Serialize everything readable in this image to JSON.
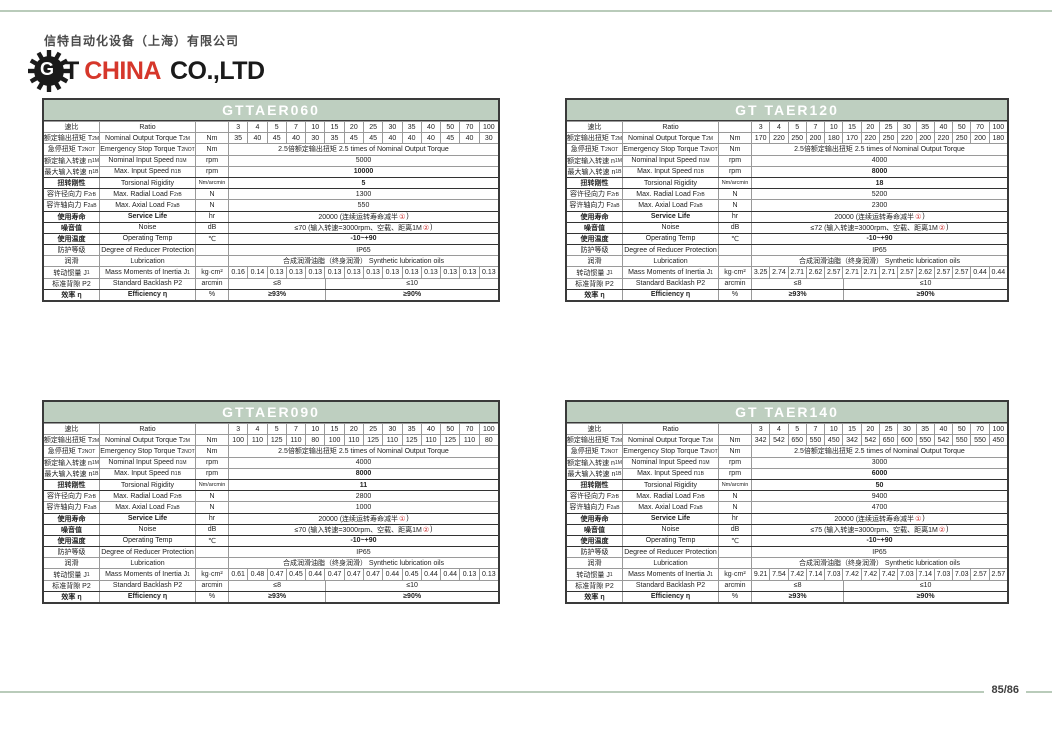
{
  "page": {
    "footer": {
      "page_number": "85/86"
    },
    "colors": {
      "band_green": "#becfc0",
      "line_green": "#b9cbba",
      "brand_red": "#d6372b",
      "mark_red": "#cc3333"
    }
  },
  "header": {
    "company_zh": "信特自动化设备（上海）有限公司",
    "brand_g": "G",
    "brand_t": "T",
    "brand_china": "CHINA",
    "brand_co": "CO.,LTD"
  },
  "tables": [
    {
      "title": "GTTAER060",
      "ratio": {
        "zh": "速比",
        "en": "Ratio",
        "unit": "",
        "values": [
          "3",
          "4",
          "5",
          "7",
          "10",
          "15",
          "20",
          "25",
          "30",
          "35",
          "40",
          "50",
          "70",
          "100"
        ]
      },
      "rows": [
        {
          "zh": "额定输出扭矩 T",
          "zh_sub": "2M",
          "en": "Nominal Output Torque T",
          "en_sub": "2M",
          "unit": "Nm",
          "type": "values",
          "values": [
            "35",
            "40",
            "45",
            "40",
            "30",
            "35",
            "45",
            "45",
            "40",
            "40",
            "40",
            "45",
            "40",
            "30"
          ]
        },
        {
          "zh": "急停扭矩 T",
          "zh_sub": "2NOT",
          "en": "Emergency Stop Torque T",
          "en_sub": "2NOT",
          "unit": "Nm",
          "type": "span",
          "value": "2.5倍额定输出扭矩  2.5 times of Nominal Output Torque"
        },
        {
          "zh": "额定输入转速 n",
          "zh_sub": "1M",
          "en": "Nominal Input Speed n",
          "en_sub": "1M",
          "unit": "rpm",
          "type": "span",
          "value": "5000"
        },
        {
          "zh": "最大输入转速 n",
          "zh_sub": "1B",
          "en": "Max. Input Speed n",
          "en_sub": "1B",
          "unit": "rpm",
          "type": "span",
          "value": "10000",
          "bold": true
        },
        {
          "zh": "扭转刚性",
          "en": "Torsional Rigidity",
          "unit": "Nm/arcmin",
          "type": "span",
          "value": "5",
          "bold": true,
          "zh_bold": true,
          "thick": true
        },
        {
          "zh": "容许径向力 F",
          "zh_sub": "2rB",
          "en": "Max. Radial Load F",
          "en_sub": "2rB",
          "unit": "N",
          "type": "span",
          "value": "1300",
          "thick": true
        },
        {
          "zh": "容许轴向力 F",
          "zh_sub": "2aB",
          "en": "Max. Axial Load F",
          "en_sub": "2aB",
          "unit": "N",
          "type": "span",
          "value": "550"
        },
        {
          "zh": "使用寿命",
          "en": "Service Life",
          "unit": "hr",
          "type": "span_red",
          "pre": "20000 (连续运转寿命减半",
          "red": "①",
          "post": ")",
          "zh_bold": true,
          "en_bold": true,
          "thick": true
        },
        {
          "zh": "噪音值",
          "en": "Noise",
          "unit": "dB",
          "type": "span_red",
          "pre": "≤70 (输入转速=3000rpm、空载、距离1M",
          "red": "②",
          "post": ")",
          "zh_bold": true,
          "thick": true
        },
        {
          "zh": "使用温度",
          "en": "Operating Temp",
          "unit": "℃",
          "type": "span",
          "value": "-10~+90",
          "bold": true,
          "zh_bold": true,
          "thick": true
        },
        {
          "zh": "防护等级",
          "en": "Degree of Reducer Protection",
          "unit": "",
          "type": "span",
          "value": "IP65",
          "thick": true
        },
        {
          "zh": "润滑",
          "en": "Lubrication",
          "unit": "",
          "type": "span",
          "value": "合成润滑油脂（终身润滑） Synthetic lubrication oils"
        },
        {
          "zh": "转动惯量 J",
          "zh_sub": "1",
          "en": "Mass Moments of Inertia J",
          "en_sub": "1",
          "unit": "kg·cm²",
          "type": "values",
          "values": [
            "0.16",
            "0.14",
            "0.13",
            "0.13",
            "0.13",
            "0.13",
            "0.13",
            "0.13",
            "0.13",
            "0.13",
            "0.13",
            "0.13",
            "0.13",
            "0.13"
          ]
        },
        {
          "zh": "标准背隙 P2",
          "en": "Standard Backlash P2",
          "unit": "arcmin",
          "type": "split",
          "left": "≤8",
          "right": "≤10"
        },
        {
          "zh": "效率 η",
          "en": "Efficiency η",
          "unit": "%",
          "type": "split",
          "left": "≥93%",
          "right": "≥90%",
          "bold": true,
          "zh_bold": true,
          "en_bold": true,
          "thick": true
        }
      ]
    },
    {
      "title": "GT TAER120",
      "ratio": {
        "zh": "速比",
        "en": "Ratio",
        "unit": "",
        "values": [
          "3",
          "4",
          "5",
          "7",
          "10",
          "15",
          "20",
          "25",
          "30",
          "35",
          "40",
          "50",
          "70",
          "100"
        ]
      },
      "rows": [
        {
          "zh": "额定输出扭矩 T",
          "zh_sub": "2M",
          "en": "Nominal Output Torque T",
          "en_sub": "2M",
          "unit": "Nm",
          "type": "values",
          "values": [
            "170",
            "220",
            "250",
            "200",
            "180",
            "170",
            "220",
            "250",
            "220",
            "200",
            "220",
            "250",
            "200",
            "180"
          ]
        },
        {
          "zh": "急停扭矩 T",
          "zh_sub": "2NOT",
          "en": "Emergency Stop Torque T",
          "en_sub": "2NOT",
          "unit": "Nm",
          "type": "span",
          "value": "2.5倍额定输出扭矩  2.5 times of Nominal Output Torque"
        },
        {
          "zh": "额定输入转速 n",
          "zh_sub": "1M",
          "en": "Nominal Input Speed n",
          "en_sub": "1M",
          "unit": "rpm",
          "type": "span",
          "value": "4000"
        },
        {
          "zh": "最大输入转速 n",
          "zh_sub": "1B",
          "en": "Max. Input Speed n",
          "en_sub": "1B",
          "unit": "rpm",
          "type": "span",
          "value": "8000",
          "bold": true
        },
        {
          "zh": "扭转刚性",
          "en": "Torsional Rigidity",
          "unit": "Nm/arcmin",
          "type": "span",
          "value": "18",
          "bold": true,
          "zh_bold": true,
          "thick": true
        },
        {
          "zh": "容许径向力 F",
          "zh_sub": "2rB",
          "en": "Max. Radial Load F",
          "en_sub": "2rB",
          "unit": "N",
          "type": "span",
          "value": "5200",
          "thick": true
        },
        {
          "zh": "容许轴向力 F",
          "zh_sub": "2aB",
          "en": "Max. Axial Load F",
          "en_sub": "2aB",
          "unit": "N",
          "type": "span",
          "value": "2300"
        },
        {
          "zh": "使用寿命",
          "en": "Service Life",
          "unit": "hr",
          "type": "span_red",
          "pre": "20000 (连续运转寿命减半",
          "red": "①",
          "post": ")",
          "zh_bold": true,
          "en_bold": true,
          "thick": true
        },
        {
          "zh": "噪音值",
          "en": "Noise",
          "unit": "dB",
          "type": "span_red",
          "pre": "≤72 (输入转速=3000rpm、空载、距离1M",
          "red": "②",
          "post": ")",
          "zh_bold": true,
          "thick": true
        },
        {
          "zh": "使用温度",
          "en": "Operating Temp",
          "unit": "℃",
          "type": "span",
          "value": "-10~+90",
          "bold": true,
          "zh_bold": true,
          "thick": true
        },
        {
          "zh": "防护等级",
          "en": "Degree of Reducer Protection",
          "unit": "",
          "type": "span",
          "value": "IP65",
          "thick": true
        },
        {
          "zh": "润滑",
          "en": "Lubrication",
          "unit": "",
          "type": "span",
          "value": "合成润滑油脂（终身润滑） Synthetic lubrication oils"
        },
        {
          "zh": "转动惯量 J",
          "zh_sub": "1",
          "en": "Mass Moments of Inertia J",
          "en_sub": "1",
          "unit": "kg·cm²",
          "type": "values",
          "values": [
            "3.25",
            "2.74",
            "2.71",
            "2.62",
            "2.57",
            "2.71",
            "2.71",
            "2.71",
            "2.57",
            "2.62",
            "2.57",
            "2.57",
            "0.44",
            "0.44"
          ]
        },
        {
          "zh": "标准背隙 P2",
          "en": "Standard Backlash P2",
          "unit": "arcmin",
          "type": "split",
          "left": "≤8",
          "right": "≤10"
        },
        {
          "zh": "效率 η",
          "en": "Efficiency η",
          "unit": "%",
          "type": "split",
          "left": "≥93%",
          "right": "≥90%",
          "bold": true,
          "zh_bold": true,
          "en_bold": true,
          "thick": true
        }
      ]
    },
    {
      "title": "GTTAER090",
      "ratio": {
        "zh": "速比",
        "en": "Ratio",
        "unit": "",
        "values": [
          "3",
          "4",
          "5",
          "7",
          "10",
          "15",
          "20",
          "25",
          "30",
          "35",
          "40",
          "50",
          "70",
          "100"
        ]
      },
      "rows": [
        {
          "zh": "额定输出扭矩 T",
          "zh_sub": "2M",
          "en": "Nominal Output Torque T",
          "en_sub": "2M",
          "unit": "Nm",
          "type": "values",
          "values": [
            "100",
            "110",
            "125",
            "110",
            "80",
            "100",
            "110",
            "125",
            "110",
            "125",
            "110",
            "125",
            "110",
            "80"
          ]
        },
        {
          "zh": "急停扭矩 T",
          "zh_sub": "2NOT",
          "en": "Emergency Stop Torque T",
          "en_sub": "2NOT",
          "unit": "Nm",
          "type": "span",
          "value": "2.5倍额定输出扭矩  2.5 times of Nominal Output Torque"
        },
        {
          "zh": "额定输入转速 n",
          "zh_sub": "1M",
          "en": "Nominal Input Speed n",
          "en_sub": "1M",
          "unit": "rpm",
          "type": "span",
          "value": "4000"
        },
        {
          "zh": "最大输入转速 n",
          "zh_sub": "1B",
          "en": "Max. Input Speed n",
          "en_sub": "1B",
          "unit": "rpm",
          "type": "span",
          "value": "8000",
          "bold": true
        },
        {
          "zh": "扭转刚性",
          "en": "Torsional Rigidity",
          "unit": "Nm/arcmin",
          "type": "span",
          "value": "11",
          "bold": true,
          "zh_bold": true,
          "thick": true
        },
        {
          "zh": "容许径向力 F",
          "zh_sub": "2rB",
          "en": "Max. Radial Load F",
          "en_sub": "2rB",
          "unit": "N",
          "type": "span",
          "value": "2800",
          "thick": true
        },
        {
          "zh": "容许轴向力 F",
          "zh_sub": "2aB",
          "en": "Max. Axial Load F",
          "en_sub": "2aB",
          "unit": "N",
          "type": "span",
          "value": "1000"
        },
        {
          "zh": "使用寿命",
          "en": "Service Life",
          "unit": "hr",
          "type": "span_red",
          "pre": "20000 (连续运转寿命减半",
          "red": "①",
          "post": ")",
          "zh_bold": true,
          "en_bold": true,
          "thick": true
        },
        {
          "zh": "噪音值",
          "en": "Noise",
          "unit": "dB",
          "type": "span_red",
          "pre": "≤70 (输入转速=3000rpm、空载、距离1M",
          "red": "②",
          "post": ")",
          "zh_bold": true,
          "thick": true
        },
        {
          "zh": "使用温度",
          "en": "Operating Temp",
          "unit": "℃",
          "type": "span",
          "value": "-10~+90",
          "bold": true,
          "zh_bold": true,
          "thick": true
        },
        {
          "zh": "防护等级",
          "en": "Degree of Reducer Protection",
          "unit": "",
          "type": "span",
          "value": "IP65",
          "thick": true
        },
        {
          "zh": "润滑",
          "en": "Lubrication",
          "unit": "",
          "type": "span",
          "value": "合成润滑油脂（终身润滑） Synthetic lubrication oils"
        },
        {
          "zh": "转动惯量 J",
          "zh_sub": "1",
          "en": "Mass Moments of Inertia J",
          "en_sub": "1",
          "unit": "kg·cm²",
          "type": "values",
          "values": [
            "0.61",
            "0.48",
            "0.47",
            "0.45",
            "0.44",
            "0.47",
            "0.47",
            "0.47",
            "0.44",
            "0.45",
            "0.44",
            "0.44",
            "0.13",
            "0.13"
          ]
        },
        {
          "zh": "标准背隙 P2",
          "en": "Standard Backlash P2",
          "unit": "arcmin",
          "type": "split",
          "left": "≤8",
          "right": "≤10"
        },
        {
          "zh": "效率 η",
          "en": "Efficiency η",
          "unit": "%",
          "type": "split",
          "left": "≥93%",
          "right": "≥90%",
          "bold": true,
          "zh_bold": true,
          "en_bold": true,
          "thick": true
        }
      ]
    },
    {
      "title": "GT TAER140",
      "ratio": {
        "zh": "速比",
        "en": "Ratio",
        "unit": "",
        "values": [
          "3",
          "4",
          "5",
          "7",
          "10",
          "15",
          "20",
          "25",
          "30",
          "35",
          "40",
          "50",
          "70",
          "100"
        ]
      },
      "rows": [
        {
          "zh": "额定输出扭矩 T",
          "zh_sub": "2M",
          "en": "Nominal Output Torque T",
          "en_sub": "2M",
          "unit": "Nm",
          "type": "values",
          "values": [
            "342",
            "542",
            "650",
            "550",
            "450",
            "342",
            "542",
            "650",
            "600",
            "550",
            "542",
            "550",
            "550",
            "450"
          ]
        },
        {
          "zh": "急停扭矩 T",
          "zh_sub": "2NOT",
          "en": "Emergency Stop Torque T",
          "en_sub": "2NOT",
          "unit": "Nm",
          "type": "span",
          "value": "2.5倍额定输出扭矩  2.5 times of Nominal Output Torque"
        },
        {
          "zh": "额定输入转速 n",
          "zh_sub": "1M",
          "en": "Nominal Input Speed n",
          "en_sub": "1M",
          "unit": "rpm",
          "type": "span",
          "value": "3000"
        },
        {
          "zh": "最大输入转速 n",
          "zh_sub": "1B",
          "en": "Max. Input Speed n",
          "en_sub": "1B",
          "unit": "rpm",
          "type": "span",
          "value": "6000",
          "bold": true
        },
        {
          "zh": "扭转刚性",
          "en": "Torsional Rigidity",
          "unit": "Nm/arcmin",
          "type": "span",
          "value": "50",
          "bold": true,
          "zh_bold": true,
          "thick": true
        },
        {
          "zh": "容许径向力 F",
          "zh_sub": "2rB",
          "en": "Max. Radial Load F",
          "en_sub": "2rB",
          "unit": "N",
          "type": "span",
          "value": "9400",
          "thick": true
        },
        {
          "zh": "容许轴向力 F",
          "zh_sub": "2aB",
          "en": "Max. Axial Load F",
          "en_sub": "2aB",
          "unit": "N",
          "type": "span",
          "value": "4700"
        },
        {
          "zh": "使用寿命",
          "en": "Service Life",
          "unit": "hr",
          "type": "span_red",
          "pre": "20000 (连续运转寿命减半",
          "red": "①",
          "post": ")",
          "zh_bold": true,
          "en_bold": true,
          "thick": true
        },
        {
          "zh": "噪音值",
          "en": "Noise",
          "unit": "dB",
          "type": "span_red",
          "pre": "≤75 (输入转速=3000rpm、空载、距离1M",
          "red": "②",
          "post": ")",
          "zh_bold": true,
          "thick": true
        },
        {
          "zh": "使用温度",
          "en": "Operating Temp",
          "unit": "℃",
          "type": "span",
          "value": "-10~+90",
          "bold": true,
          "zh_bold": true,
          "thick": true
        },
        {
          "zh": "防护等级",
          "en": "Degree of Reducer Protection",
          "unit": "",
          "type": "span",
          "value": "IP65",
          "thick": true
        },
        {
          "zh": "润滑",
          "en": "Lubrication",
          "unit": "",
          "type": "span",
          "value": "合成润滑油脂（终身润滑） Synthetic lubrication oils"
        },
        {
          "zh": "转动惯量 J",
          "zh_sub": "1",
          "en": "Mass Moments of Inertia J",
          "en_sub": "1",
          "unit": "kg·cm²",
          "type": "values",
          "values": [
            "9.21",
            "7.54",
            "7.42",
            "7.14",
            "7.03",
            "7.42",
            "7.42",
            "7.42",
            "7.03",
            "7.14",
            "7.03",
            "7.03",
            "2.57",
            "2.57"
          ]
        },
        {
          "zh": "标准背隙 P2",
          "en": "Standard Backlash P2",
          "unit": "arcmin",
          "type": "split",
          "left": "≤8",
          "right": "≤10"
        },
        {
          "zh": "效率 η",
          "en": "Efficiency η",
          "unit": "%",
          "type": "split",
          "left": "≥93%",
          "right": "≥90%",
          "bold": true,
          "zh_bold": true,
          "en_bold": true,
          "thick": true
        }
      ]
    }
  ]
}
